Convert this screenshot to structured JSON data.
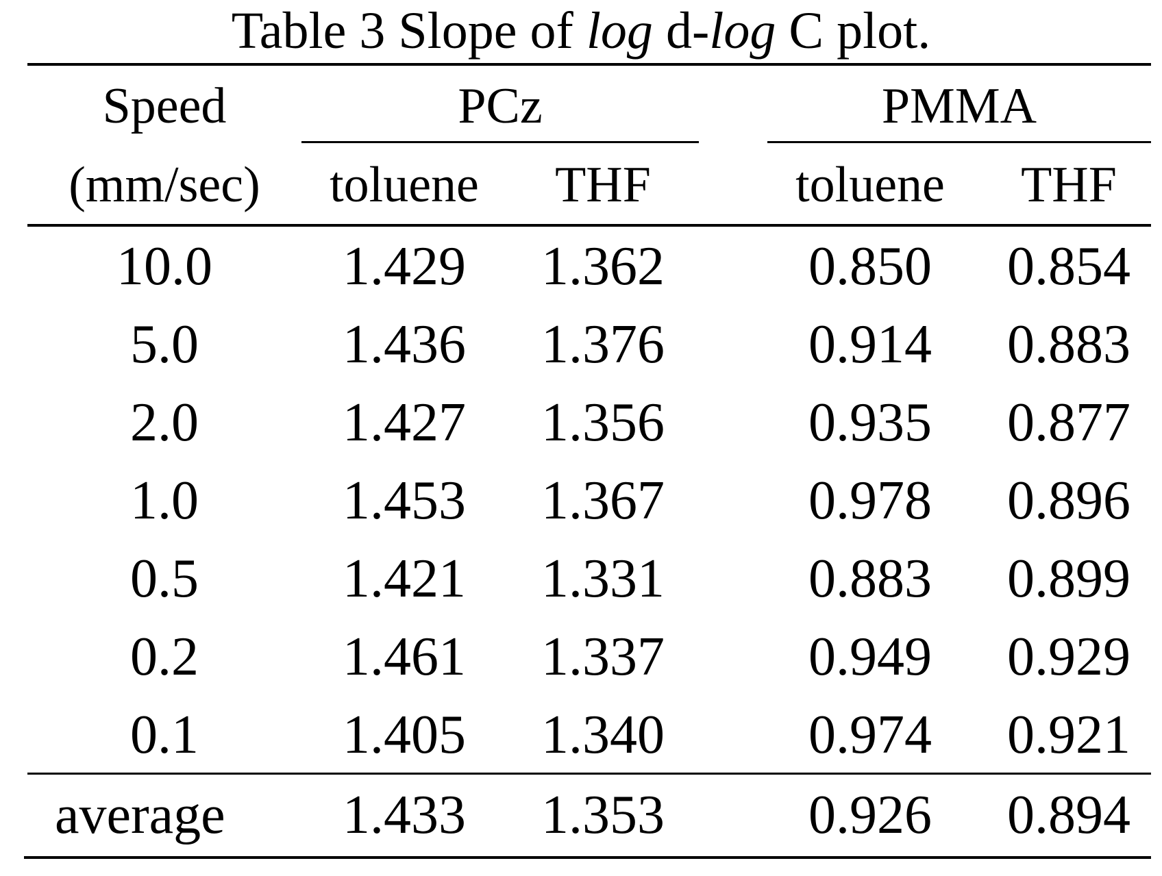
{
  "caption": {
    "prefix": "Table 3 Slope of ",
    "italic1": "log",
    "mid": " d-",
    "italic2": "log",
    "suffix": " C plot."
  },
  "header": {
    "speed_line1": "Speed",
    "speed_line2": "(mm/sec)",
    "group_pcz": "PCz",
    "group_pmma": "PMMA",
    "pcz_toluene": "toluene",
    "pcz_thf": "THF",
    "pmma_toluene": "toluene",
    "pmma_thf": "THF"
  },
  "rows": [
    {
      "speed": "10.0",
      "pcz_toluene": "1.429",
      "pcz_thf": "1.362",
      "pmma_toluene": "0.850",
      "pmma_thf": "0.854"
    },
    {
      "speed": "5.0",
      "pcz_toluene": "1.436",
      "pcz_thf": "1.376",
      "pmma_toluene": "0.914",
      "pmma_thf": "0.883"
    },
    {
      "speed": "2.0",
      "pcz_toluene": "1.427",
      "pcz_thf": "1.356",
      "pmma_toluene": "0.935",
      "pmma_thf": "0.877"
    },
    {
      "speed": "1.0",
      "pcz_toluene": "1.453",
      "pcz_thf": "1.367",
      "pmma_toluene": "0.978",
      "pmma_thf": "0.896"
    },
    {
      "speed": "0.5",
      "pcz_toluene": "1.421",
      "pcz_thf": "1.331",
      "pmma_toluene": "0.883",
      "pmma_thf": "0.899"
    },
    {
      "speed": "0.2",
      "pcz_toluene": "1.461",
      "pcz_thf": "1.337",
      "pmma_toluene": "0.949",
      "pmma_thf": "0.929"
    },
    {
      "speed": "0.1",
      "pcz_toluene": "1.405",
      "pcz_thf": "1.340",
      "pmma_toluene": "0.974",
      "pmma_thf": "0.921"
    }
  ],
  "average": {
    "label": "average",
    "pcz_toluene": "1.433",
    "pcz_thf": "1.353",
    "pmma_toluene": "0.926",
    "pmma_thf": "0.894"
  }
}
